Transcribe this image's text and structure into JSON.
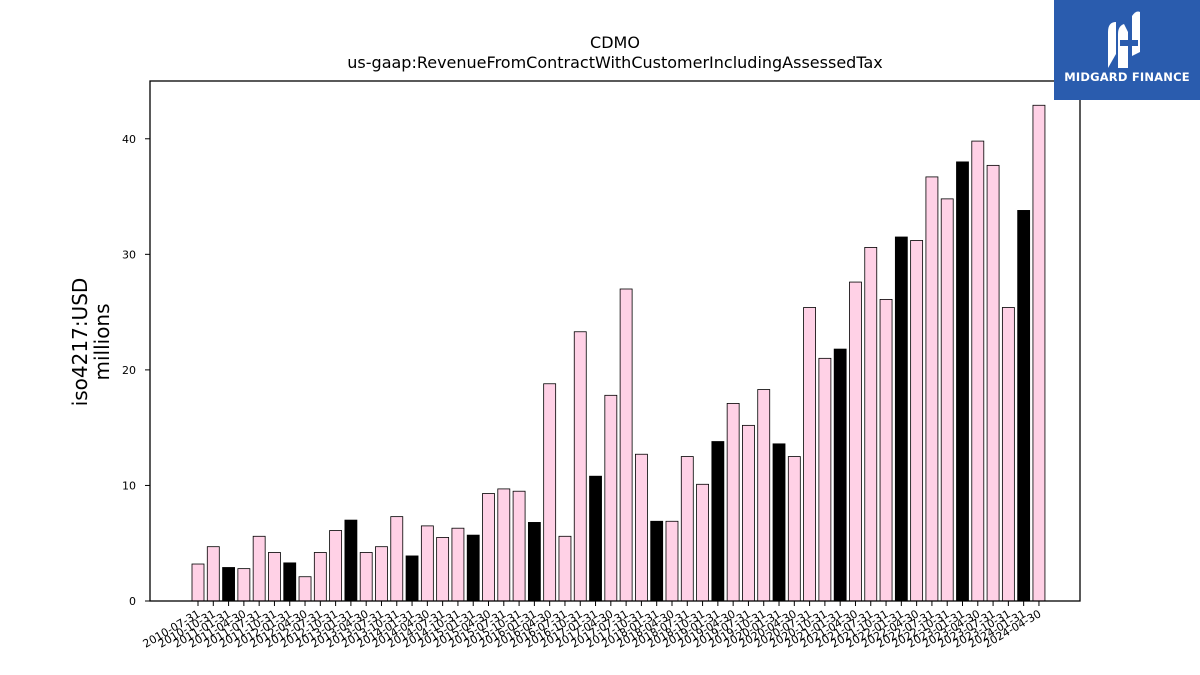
{
  "chart_data": {
    "type": "bar",
    "title": "CDMO",
    "subtitle": "us-gaap:RevenueFromContractWithCustomerIncludingAssessedTax",
    "ylabel": "iso4217:USD",
    "ylabel_units": "millions",
    "xlabel": "",
    "ylim": [
      0,
      45
    ],
    "yticks": [
      0,
      10,
      20,
      30,
      40
    ],
    "grid": false,
    "colors": {
      "quarter": "#ffd1e6",
      "fiscal_year": "#000000",
      "edge": "#000000"
    },
    "categories": [
      "2010-07-31",
      "2010-10-31",
      "2011-01-31",
      "2011-04-30",
      "2011-07-31",
      "2011-10-31",
      "2012-01-31",
      "2012-04-30",
      "2012-07-31",
      "2012-10-31",
      "2013-01-31",
      "2013-04-30",
      "2013-07-31",
      "2013-10-31",
      "2014-01-31",
      "2014-04-30",
      "2014-07-31",
      "2014-10-31",
      "2015-01-31",
      "2015-04-30",
      "2015-07-31",
      "2015-10-31",
      "2016-01-31",
      "2016-04-30",
      "2016-07-31",
      "2016-10-31",
      "2017-01-31",
      "2017-04-30",
      "2017-07-31",
      "2017-10-31",
      "2018-01-31",
      "2018-04-30",
      "2018-07-31",
      "2018-10-31",
      "2019-01-31",
      "2019-04-30",
      "2019-07-31",
      "2019-10-31",
      "2020-01-31",
      "2020-04-30",
      "2020-07-31",
      "2020-10-31",
      "2021-01-31",
      "2021-04-30",
      "2021-07-31",
      "2021-10-31",
      "2022-01-31",
      "2022-04-30",
      "2022-07-31",
      "2022-10-31",
      "2023-01-31",
      "2023-04-30",
      "2023-07-31",
      "2023-10-31",
      "2024-01-31",
      "2024-04-30"
    ],
    "values": [
      3.2,
      4.7,
      2.9,
      2.8,
      5.6,
      4.2,
      3.3,
      2.1,
      4.2,
      6.1,
      7.0,
      4.2,
      4.7,
      7.3,
      3.9,
      6.5,
      5.5,
      6.3,
      5.7,
      9.3,
      9.7,
      9.5,
      6.8,
      18.8,
      5.6,
      23.3,
      10.8,
      17.8,
      27.0,
      12.7,
      6.9,
      6.9,
      12.5,
      10.1,
      13.8,
      17.1,
      15.2,
      18.3,
      13.6,
      12.5,
      25.4,
      21.0,
      21.8,
      27.6,
      30.6,
      26.1,
      31.5,
      31.2,
      36.7,
      34.8,
      38.0,
      39.8,
      37.7,
      25.4,
      33.8,
      42.9
    ],
    "fiscal_year_flags": [
      0,
      0,
      1,
      0,
      0,
      0,
      1,
      0,
      0,
      0,
      1,
      0,
      0,
      0,
      1,
      0,
      0,
      0,
      1,
      0,
      0,
      0,
      1,
      0,
      0,
      0,
      1,
      0,
      0,
      0,
      1,
      0,
      0,
      0,
      1,
      0,
      0,
      0,
      1,
      0,
      0,
      0,
      1,
      0,
      0,
      0,
      1,
      0,
      0,
      0,
      1,
      0,
      0,
      0,
      1,
      0
    ]
  },
  "logo": {
    "text": "MIDGARD FINANCE",
    "background": "#2a5cae"
  }
}
